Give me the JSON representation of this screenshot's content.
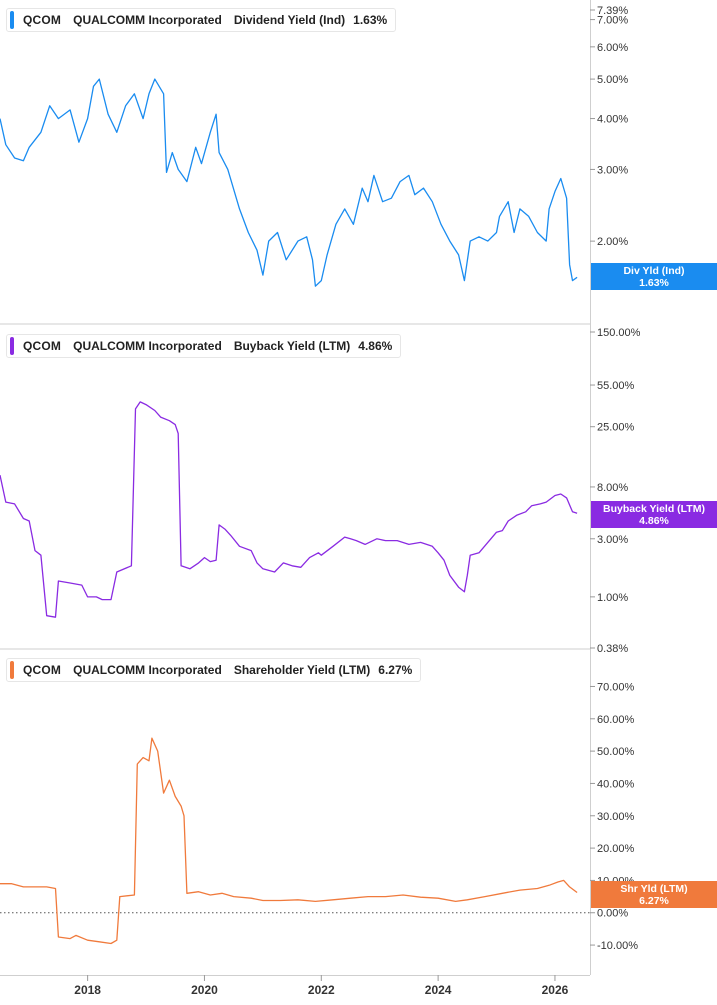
{
  "colors": {
    "dividend": "#1a8cf0",
    "buyback": "#8a2be2",
    "shareholder": "#f07a3c",
    "axis": "#999999",
    "divider": "#cfcfcf"
  },
  "panes": [
    {
      "symbol": "QCOM",
      "company": "QUALCOMM Incorporated",
      "metric": "Dividend Yield (Ind)",
      "value": "1.63%",
      "tag_line1": "Div Yld (Ind)",
      "tag_line2": "1.63%"
    },
    {
      "symbol": "QCOM",
      "company": "QUALCOMM Incorporated",
      "metric": "Buyback Yield (LTM)",
      "value": "4.86%",
      "tag_line1": "Buyback Yield (LTM)",
      "tag_line2": "4.86%"
    },
    {
      "symbol": "QCOM",
      "company": "QUALCOMM Incorporated",
      "metric": "Shareholder Yield (LTM)",
      "value": "6.27%",
      "tag_line1": "Shr Yld (LTM)",
      "tag_line2": "6.27%"
    }
  ],
  "chart_data": [
    {
      "type": "line",
      "series": [
        {
          "name": "Dividend Yield (Ind)",
          "color": "#1a8cf0",
          "points": [
            [
              2016.5,
              4.0
            ],
            [
              2016.6,
              3.45
            ],
            [
              2016.75,
              3.2
            ],
            [
              2016.9,
              3.15
            ],
            [
              2017.0,
              3.4
            ],
            [
              2017.2,
              3.7
            ],
            [
              2017.35,
              4.3
            ],
            [
              2017.5,
              4.0
            ],
            [
              2017.7,
              4.2
            ],
            [
              2017.85,
              3.5
            ],
            [
              2018.0,
              4.0
            ],
            [
              2018.1,
              4.8
            ],
            [
              2018.2,
              5.0
            ],
            [
              2018.35,
              4.1
            ],
            [
              2018.5,
              3.7
            ],
            [
              2018.65,
              4.3
            ],
            [
              2018.8,
              4.6
            ],
            [
              2018.95,
              4.0
            ],
            [
              2019.05,
              4.6
            ],
            [
              2019.15,
              5.0
            ],
            [
              2019.3,
              4.6
            ],
            [
              2019.35,
              2.95
            ],
            [
              2019.45,
              3.3
            ],
            [
              2019.55,
              3.0
            ],
            [
              2019.7,
              2.8
            ],
            [
              2019.85,
              3.4
            ],
            [
              2019.95,
              3.1
            ],
            [
              2020.1,
              3.7
            ],
            [
              2020.2,
              4.1
            ],
            [
              2020.25,
              3.3
            ],
            [
              2020.4,
              3.0
            ],
            [
              2020.6,
              2.4
            ],
            [
              2020.75,
              2.1
            ],
            [
              2020.9,
              1.9
            ],
            [
              2021.0,
              1.65
            ],
            [
              2021.1,
              2.0
            ],
            [
              2021.25,
              2.1
            ],
            [
              2021.4,
              1.8
            ],
            [
              2021.6,
              2.0
            ],
            [
              2021.75,
              2.05
            ],
            [
              2021.85,
              1.8
            ],
            [
              2021.9,
              1.55
            ],
            [
              2022.0,
              1.6
            ],
            [
              2022.1,
              1.85
            ],
            [
              2022.25,
              2.2
            ],
            [
              2022.4,
              2.4
            ],
            [
              2022.55,
              2.2
            ],
            [
              2022.7,
              2.7
            ],
            [
              2022.8,
              2.5
            ],
            [
              2022.9,
              2.9
            ],
            [
              2023.05,
              2.5
            ],
            [
              2023.2,
              2.55
            ],
            [
              2023.35,
              2.8
            ],
            [
              2023.5,
              2.9
            ],
            [
              2023.6,
              2.6
            ],
            [
              2023.75,
              2.7
            ],
            [
              2023.9,
              2.5
            ],
            [
              2024.05,
              2.2
            ],
            [
              2024.2,
              2.0
            ],
            [
              2024.35,
              1.85
            ],
            [
              2024.45,
              1.6
            ],
            [
              2024.55,
              2.0
            ],
            [
              2024.7,
              2.05
            ],
            [
              2024.85,
              2.0
            ],
            [
              2025.0,
              2.1
            ],
            [
              2025.05,
              2.3
            ],
            [
              2025.2,
              2.5
            ],
            [
              2025.3,
              2.1
            ],
            [
              2025.4,
              2.4
            ],
            [
              2025.55,
              2.3
            ],
            [
              2025.7,
              2.1
            ],
            [
              2025.85,
              2.0
            ],
            [
              2025.9,
              2.4
            ],
            [
              2026.0,
              2.65
            ],
            [
              2026.1,
              2.85
            ],
            [
              2026.2,
              2.55
            ],
            [
              2026.25,
              1.75
            ],
            [
              2026.3,
              1.6
            ],
            [
              2026.38,
              1.63
            ]
          ]
        }
      ],
      "yaxis": {
        "scale": "log",
        "range": [
          1.5,
          7.39
        ],
        "ticks": [
          "2.00%",
          "3.00%",
          "4.00%",
          "5.00%",
          "6.00%",
          "7.00%",
          "7.39%"
        ]
      }
    },
    {
      "type": "line",
      "series": [
        {
          "name": "Buyback Yield (LTM)",
          "color": "#8a2be2",
          "points": [
            [
              2016.5,
              10
            ],
            [
              2016.6,
              6
            ],
            [
              2016.75,
              5.8
            ],
            [
              2016.9,
              4.4
            ],
            [
              2017.0,
              4.2
            ],
            [
              2017.1,
              2.4
            ],
            [
              2017.2,
              2.2
            ],
            [
              2017.3,
              0.7
            ],
            [
              2017.45,
              0.68
            ],
            [
              2017.5,
              1.35
            ],
            [
              2017.7,
              1.3
            ],
            [
              2017.9,
              1.25
            ],
            [
              2018.0,
              1.0
            ],
            [
              2018.15,
              1.0
            ],
            [
              2018.25,
              0.95
            ],
            [
              2018.4,
              0.95
            ],
            [
              2018.5,
              1.6
            ],
            [
              2018.75,
              1.8
            ],
            [
              2018.82,
              35
            ],
            [
              2018.9,
              40
            ],
            [
              2019.0,
              38
            ],
            [
              2019.15,
              34
            ],
            [
              2019.25,
              30
            ],
            [
              2019.4,
              28
            ],
            [
              2019.5,
              26
            ],
            [
              2019.55,
              22
            ],
            [
              2019.6,
              1.8
            ],
            [
              2019.75,
              1.7
            ],
            [
              2019.9,
              1.9
            ],
            [
              2020.0,
              2.1
            ],
            [
              2020.1,
              1.95
            ],
            [
              2020.2,
              2.0
            ],
            [
              2020.25,
              3.9
            ],
            [
              2020.35,
              3.6
            ],
            [
              2020.45,
              3.2
            ],
            [
              2020.6,
              2.6
            ],
            [
              2020.8,
              2.4
            ],
            [
              2020.9,
              1.9
            ],
            [
              2021.0,
              1.7
            ],
            [
              2021.2,
              1.6
            ],
            [
              2021.35,
              1.9
            ],
            [
              2021.5,
              1.8
            ],
            [
              2021.65,
              1.75
            ],
            [
              2021.8,
              2.1
            ],
            [
              2021.95,
              2.3
            ],
            [
              2022.0,
              2.2
            ],
            [
              2022.2,
              2.6
            ],
            [
              2022.4,
              3.1
            ],
            [
              2022.5,
              3.0
            ],
            [
              2022.6,
              2.9
            ],
            [
              2022.75,
              2.7
            ],
            [
              2022.95,
              3.0
            ],
            [
              2023.1,
              2.9
            ],
            [
              2023.3,
              2.9
            ],
            [
              2023.5,
              2.7
            ],
            [
              2023.7,
              2.8
            ],
            [
              2023.9,
              2.6
            ],
            [
              2024.0,
              2.3
            ],
            [
              2024.1,
              2.0
            ],
            [
              2024.2,
              1.5
            ],
            [
              2024.35,
              1.2
            ],
            [
              2024.45,
              1.1
            ],
            [
              2024.5,
              1.5
            ],
            [
              2024.55,
              2.2
            ],
            [
              2024.7,
              2.3
            ],
            [
              2024.85,
              2.8
            ],
            [
              2025.0,
              3.4
            ],
            [
              2025.1,
              3.5
            ],
            [
              2025.2,
              4.2
            ],
            [
              2025.35,
              4.7
            ],
            [
              2025.5,
              5.0
            ],
            [
              2025.6,
              5.6
            ],
            [
              2025.75,
              5.8
            ],
            [
              2025.85,
              6.0
            ],
            [
              2026.0,
              6.8
            ],
            [
              2026.1,
              7.0
            ],
            [
              2026.2,
              6.5
            ],
            [
              2026.3,
              5.0
            ],
            [
              2026.38,
              4.86
            ]
          ]
        }
      ],
      "yaxis": {
        "scale": "log",
        "range": [
          0.38,
          150
        ],
        "ticks": [
          "0.38%",
          "1.00%",
          "3.00%",
          "8.00%",
          "25.00%",
          "55.00%",
          "150.00%"
        ]
      }
    },
    {
      "type": "line",
      "series": [
        {
          "name": "Shareholder Yield (LTM)",
          "color": "#f07a3c",
          "points": [
            [
              2016.5,
              9.0
            ],
            [
              2016.7,
              9.0
            ],
            [
              2016.9,
              8.0
            ],
            [
              2017.1,
              8.0
            ],
            [
              2017.3,
              8.0
            ],
            [
              2017.45,
              7.5
            ],
            [
              2017.5,
              -7.5
            ],
            [
              2017.7,
              -8.0
            ],
            [
              2017.8,
              -7.0
            ],
            [
              2018.0,
              -8.5
            ],
            [
              2018.2,
              -9.0
            ],
            [
              2018.4,
              -9.5
            ],
            [
              2018.5,
              -8.5
            ],
            [
              2018.55,
              5.0
            ],
            [
              2018.8,
              5.5
            ],
            [
              2018.85,
              46
            ],
            [
              2018.95,
              48
            ],
            [
              2019.05,
              47
            ],
            [
              2019.1,
              54
            ],
            [
              2019.2,
              50
            ],
            [
              2019.3,
              37
            ],
            [
              2019.4,
              41
            ],
            [
              2019.5,
              36
            ],
            [
              2019.6,
              33
            ],
            [
              2019.65,
              30
            ],
            [
              2019.7,
              6.0
            ],
            [
              2019.9,
              6.5
            ],
            [
              2020.1,
              5.5
            ],
            [
              2020.3,
              6.0
            ],
            [
              2020.5,
              5.0
            ],
            [
              2020.8,
              4.5
            ],
            [
              2021.0,
              3.8
            ],
            [
              2021.3,
              3.8
            ],
            [
              2021.6,
              4.0
            ],
            [
              2021.9,
              3.5
            ],
            [
              2022.2,
              4.0
            ],
            [
              2022.5,
              4.5
            ],
            [
              2022.8,
              5.0
            ],
            [
              2023.1,
              5.0
            ],
            [
              2023.4,
              5.5
            ],
            [
              2023.7,
              4.8
            ],
            [
              2024.0,
              4.5
            ],
            [
              2024.3,
              3.5
            ],
            [
              2024.5,
              4.0
            ],
            [
              2024.8,
              5.0
            ],
            [
              2025.1,
              6.0
            ],
            [
              2025.4,
              7.0
            ],
            [
              2025.7,
              7.5
            ],
            [
              2025.9,
              8.5
            ],
            [
              2026.05,
              9.5
            ],
            [
              2026.15,
              10.0
            ],
            [
              2026.25,
              8.0
            ],
            [
              2026.38,
              6.27
            ]
          ]
        }
      ],
      "yaxis": {
        "scale": "linear",
        "range": [
          -14,
          72
        ],
        "ticks": [
          "-10.00%",
          "0.00%",
          "10.00%",
          "20.00%",
          "30.00%",
          "40.00%",
          "50.00%",
          "60.00%",
          "70.00%"
        ]
      }
    }
  ],
  "xaxis": {
    "range": [
      2016.5,
      2026.6
    ],
    "ticks": [
      "2018",
      "2020",
      "2022",
      "2024",
      "2026"
    ]
  }
}
